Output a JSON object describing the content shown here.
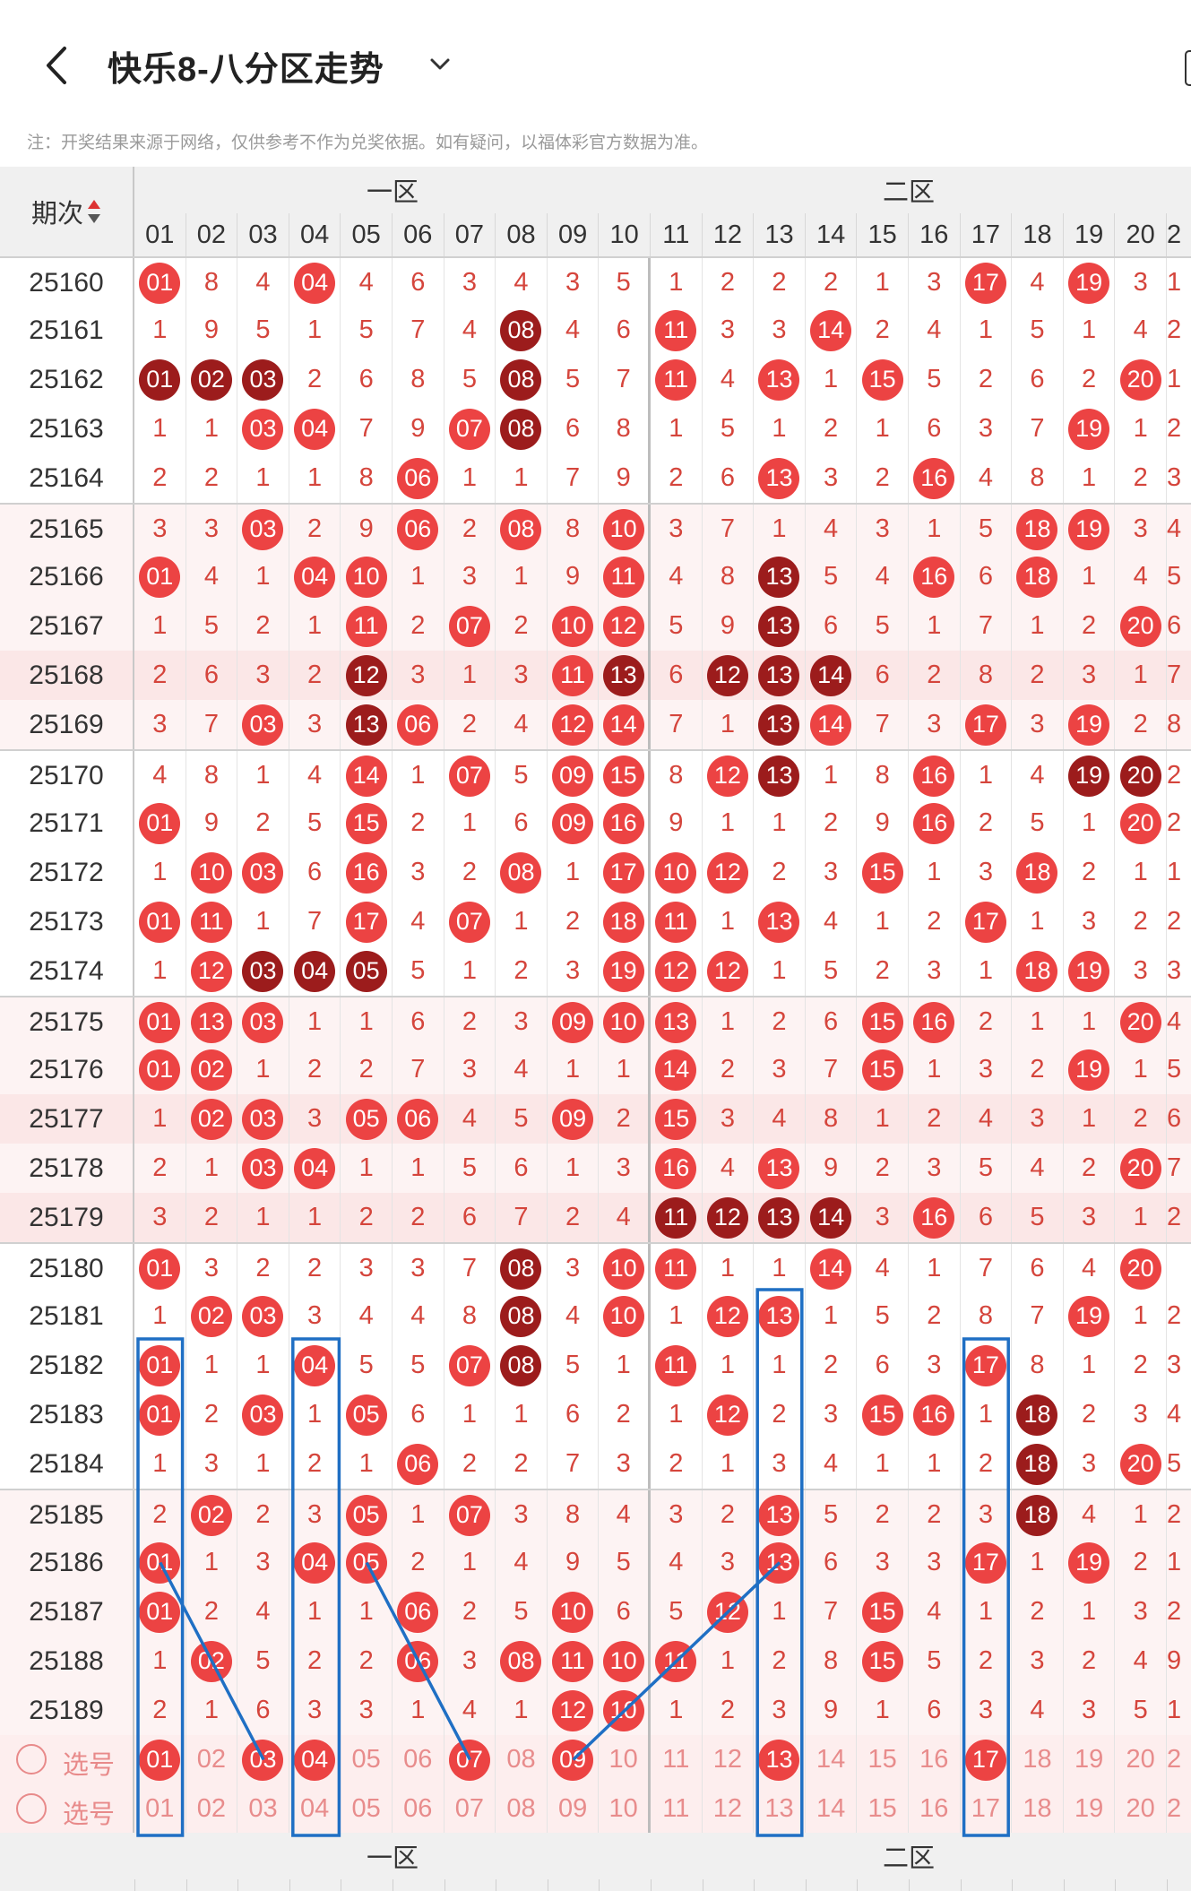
{
  "header": {
    "title": "快乐8-八分区走势",
    "notice": "注：开奖结果来源于网络，仅供参考不作为兑奖依据。如有疑问，以福体彩官方数据为准。"
  },
  "table": {
    "issue_header": "期次",
    "zones": [
      "一区",
      "二区"
    ],
    "columns": [
      "01",
      "02",
      "03",
      "04",
      "05",
      "06",
      "07",
      "08",
      "09",
      "10",
      "11",
      "12",
      "13",
      "14",
      "15",
      "16",
      "17",
      "18",
      "19",
      "20"
    ],
    "partial_next_column": "2",
    "rows": [
      {
        "issue": "25160",
        "cells": [
          "01",
          "8",
          "4",
          "04",
          "4",
          "6",
          "3",
          "4",
          "3",
          "5",
          "1",
          "2",
          "2",
          "2",
          "1",
          "3",
          "17",
          "4",
          "19",
          "3"
        ],
        "dark": [],
        "edge": "1"
      },
      {
        "issue": "25161",
        "cells": [
          "1",
          "9",
          "5",
          "1",
          "5",
          "7",
          "4",
          "08",
          "4",
          "6",
          "11",
          "3",
          "3",
          "14",
          "2",
          "4",
          "1",
          "5",
          "1",
          "4"
        ],
        "dark": [
          "08"
        ],
        "edge": "2"
      },
      {
        "issue": "25162",
        "cells": [
          "01",
          "02",
          "03",
          "2",
          "6",
          "8",
          "5",
          "08",
          "5",
          "7",
          "11",
          "4",
          "13",
          "1",
          "15",
          "5",
          "2",
          "6",
          "2",
          "20"
        ],
        "dark": [
          "01",
          "02",
          "03",
          "08"
        ],
        "edge": "1"
      },
      {
        "issue": "25163",
        "cells": [
          "1",
          "1",
          "03",
          "04",
          "7",
          "9",
          "07",
          "08",
          "6",
          "8",
          "1",
          "5",
          "1",
          "2",
          "1",
          "6",
          "3",
          "7",
          "19",
          "1"
        ],
        "dark": [
          "08"
        ],
        "edge": "2"
      },
      {
        "issue": "25164",
        "cells": [
          "2",
          "2",
          "1",
          "1",
          "8",
          "06",
          "1",
          "1",
          "7",
          "9",
          "2",
          "6",
          "13",
          "3",
          "2",
          "16",
          "4",
          "8",
          "1",
          "2"
        ],
        "dark": [],
        "edge": "3"
      },
      {
        "issue": "25165",
        "cells": [
          "3",
          "3",
          "03",
          "2",
          "9",
          "06",
          "2",
          "08",
          "8",
          "10",
          "3",
          "7",
          "1",
          "4",
          "3",
          "1",
          "5",
          "18",
          "19",
          "3"
        ],
        "dark": [],
        "edge": "4"
      },
      {
        "issue": "25166",
        "cells": [
          "01",
          "4",
          "1",
          "04",
          "10",
          "1",
          "3",
          "1",
          "9",
          "11",
          "4",
          "8",
          "13",
          "5",
          "4",
          "16",
          "6",
          "18",
          "1",
          "4"
        ],
        "dark": [
          "13"
        ],
        "edge": "5"
      },
      {
        "issue": "25167",
        "cells": [
          "1",
          "5",
          "2",
          "1",
          "11",
          "2",
          "07",
          "2",
          "10",
          "12",
          "5",
          "9",
          "13",
          "6",
          "5",
          "1",
          "7",
          "1",
          "2",
          "20"
        ],
        "dark": [
          "13"
        ],
        "edge": "6"
      },
      {
        "issue": "25168",
        "cells": [
          "2",
          "6",
          "3",
          "2",
          "12",
          "3",
          "1",
          "3",
          "11",
          "13",
          "6",
          "12",
          "13",
          "14",
          "6",
          "2",
          "8",
          "2",
          "3",
          "1"
        ],
        "dark": [
          "12",
          "13",
          "14"
        ],
        "edge": "7"
      },
      {
        "issue": "25169",
        "cells": [
          "3",
          "7",
          "03",
          "3",
          "13",
          "06",
          "2",
          "4",
          "12",
          "14",
          "7",
          "1",
          "13",
          "14",
          "7",
          "3",
          "17",
          "3",
          "19",
          "2"
        ],
        "dark": [
          "13"
        ],
        "edge": "8"
      },
      {
        "issue": "25170",
        "cells": [
          "4",
          "8",
          "1",
          "4",
          "14",
          "1",
          "07",
          "5",
          "09",
          "15",
          "8",
          "12",
          "13",
          "1",
          "8",
          "16",
          "1",
          "4",
          "19",
          "20"
        ],
        "dark": [
          "13",
          "19",
          "20"
        ],
        "edge": "2"
      },
      {
        "issue": "25171",
        "cells": [
          "01",
          "9",
          "2",
          "5",
          "15",
          "2",
          "1",
          "6",
          "09",
          "16",
          "9",
          "1",
          "1",
          "2",
          "9",
          "16",
          "2",
          "5",
          "1",
          "20"
        ],
        "dark": [],
        "edge": "2"
      },
      {
        "issue": "25172",
        "cells": [
          "1",
          "10",
          "03",
          "6",
          "16",
          "3",
          "2",
          "08",
          "1",
          "17",
          "10",
          "12",
          "2",
          "3",
          "15",
          "1",
          "3",
          "18",
          "2",
          "1"
        ],
        "dark": [],
        "edge": "1"
      },
      {
        "issue": "25173",
        "cells": [
          "01",
          "11",
          "1",
          "7",
          "17",
          "4",
          "07",
          "1",
          "2",
          "18",
          "11",
          "1",
          "13",
          "4",
          "1",
          "2",
          "17",
          "1",
          "3",
          "2"
        ],
        "dark": [],
        "edge": "2"
      },
      {
        "issue": "25174",
        "cells": [
          "1",
          "12",
          "03",
          "04",
          "05",
          "5",
          "1",
          "2",
          "3",
          "19",
          "12",
          "12",
          "1",
          "5",
          "2",
          "3",
          "1",
          "18",
          "19",
          "3"
        ],
        "dark": [
          "03",
          "04",
          "05"
        ],
        "edge": "3"
      },
      {
        "issue": "25175",
        "cells": [
          "01",
          "13",
          "03",
          "1",
          "1",
          "6",
          "2",
          "3",
          "09",
          "10",
          "13",
          "1",
          "2",
          "6",
          "15",
          "16",
          "2",
          "1",
          "1",
          "20"
        ],
        "dark": [],
        "edge": "4"
      },
      {
        "issue": "25176",
        "cells": [
          "01",
          "02",
          "1",
          "2",
          "2",
          "7",
          "3",
          "4",
          "1",
          "1",
          "14",
          "2",
          "3",
          "7",
          "15",
          "1",
          "3",
          "2",
          "19",
          "1"
        ],
        "dark": [],
        "edge": "5"
      },
      {
        "issue": "25177",
        "cells": [
          "1",
          "02",
          "03",
          "3",
          "05",
          "06",
          "4",
          "5",
          "09",
          "2",
          "15",
          "3",
          "4",
          "8",
          "1",
          "2",
          "4",
          "3",
          "1",
          "2"
        ],
        "dark": [],
        "edge": "6"
      },
      {
        "issue": "25178",
        "cells": [
          "2",
          "1",
          "03",
          "04",
          "1",
          "1",
          "5",
          "6",
          "1",
          "3",
          "16",
          "4",
          "13",
          "9",
          "2",
          "3",
          "5",
          "4",
          "2",
          "20"
        ],
        "dark": [],
        "edge": "7"
      },
      {
        "issue": "25179",
        "cells": [
          "3",
          "2",
          "1",
          "1",
          "2",
          "2",
          "6",
          "7",
          "2",
          "4",
          "11",
          "12",
          "13",
          "14",
          "3",
          "16",
          "6",
          "5",
          "3",
          "1"
        ],
        "dark": [
          "11",
          "12",
          "13",
          "14"
        ],
        "edge": "2"
      },
      {
        "issue": "25180",
        "cells": [
          "01",
          "3",
          "2",
          "2",
          "3",
          "3",
          "7",
          "08",
          "3",
          "10",
          "11",
          "1",
          "1",
          "14",
          "4",
          "1",
          "7",
          "6",
          "4",
          "20"
        ],
        "dark": [
          "08"
        ],
        "edge": ""
      },
      {
        "issue": "25181",
        "cells": [
          "1",
          "02",
          "03",
          "3",
          "4",
          "4",
          "8",
          "08",
          "4",
          "10",
          "1",
          "12",
          "13",
          "1",
          "5",
          "2",
          "8",
          "7",
          "19",
          "1"
        ],
        "dark": [
          "08"
        ],
        "edge": "2"
      },
      {
        "issue": "25182",
        "cells": [
          "01",
          "1",
          "1",
          "04",
          "5",
          "5",
          "07",
          "08",
          "5",
          "1",
          "11",
          "1",
          "1",
          "2",
          "6",
          "3",
          "17",
          "8",
          "1",
          "2"
        ],
        "dark": [
          "08"
        ],
        "edge": "3"
      },
      {
        "issue": "25183",
        "cells": [
          "01",
          "2",
          "03",
          "1",
          "05",
          "6",
          "1",
          "1",
          "6",
          "2",
          "1",
          "12",
          "2",
          "3",
          "15",
          "16",
          "1",
          "18",
          "2",
          "3"
        ],
        "dark": [
          "18"
        ],
        "edge": "4"
      },
      {
        "issue": "25184",
        "cells": [
          "1",
          "3",
          "1",
          "2",
          "1",
          "06",
          "2",
          "2",
          "7",
          "3",
          "2",
          "1",
          "3",
          "4",
          "1",
          "1",
          "2",
          "18",
          "3",
          "20"
        ],
        "dark": [
          "18"
        ],
        "edge": "5"
      },
      {
        "issue": "25185",
        "cells": [
          "2",
          "02",
          "2",
          "3",
          "05",
          "1",
          "07",
          "3",
          "8",
          "4",
          "3",
          "2",
          "13",
          "5",
          "2",
          "2",
          "3",
          "18",
          "4",
          "1"
        ],
        "dark": [
          "18"
        ],
        "edge": "2"
      },
      {
        "issue": "25186",
        "cells": [
          "01",
          "1",
          "3",
          "04",
          "05",
          "2",
          "1",
          "4",
          "9",
          "5",
          "4",
          "3",
          "13",
          "6",
          "3",
          "3",
          "17",
          "1",
          "19",
          "2"
        ],
        "dark": [],
        "edge": "1"
      },
      {
        "issue": "25187",
        "cells": [
          "01",
          "2",
          "4",
          "1",
          "1",
          "06",
          "2",
          "5",
          "10",
          "6",
          "5",
          "12",
          "1",
          "7",
          "15",
          "4",
          "1",
          "2",
          "1",
          "3"
        ],
        "dark": [],
        "edge": "2"
      },
      {
        "issue": "25188",
        "cells": [
          "1",
          "02",
          "5",
          "2",
          "2",
          "06",
          "3",
          "08",
          "11",
          "10",
          "11",
          "1",
          "2",
          "8",
          "15",
          "5",
          "2",
          "3",
          "2",
          "4"
        ],
        "dark": [],
        "edge": "9"
      },
      {
        "issue": "25189",
        "cells": [
          "2",
          "1",
          "6",
          "3",
          "3",
          "1",
          "4",
          "1",
          "12",
          "10",
          "1",
          "2",
          "3",
          "9",
          "1",
          "6",
          "3",
          "4",
          "3",
          "5"
        ],
        "dark": [],
        "edge": "1"
      }
    ],
    "pick_rows": [
      {
        "label": "选号",
        "selected": [
          "01",
          "03",
          "04",
          "07",
          "09",
          "13",
          "17"
        ]
      },
      {
        "label": "选号",
        "selected": []
      }
    ],
    "accent_red": "#ec4343",
    "accent_dark": "#9c1c1c",
    "line_color": "#1f6fc4"
  }
}
